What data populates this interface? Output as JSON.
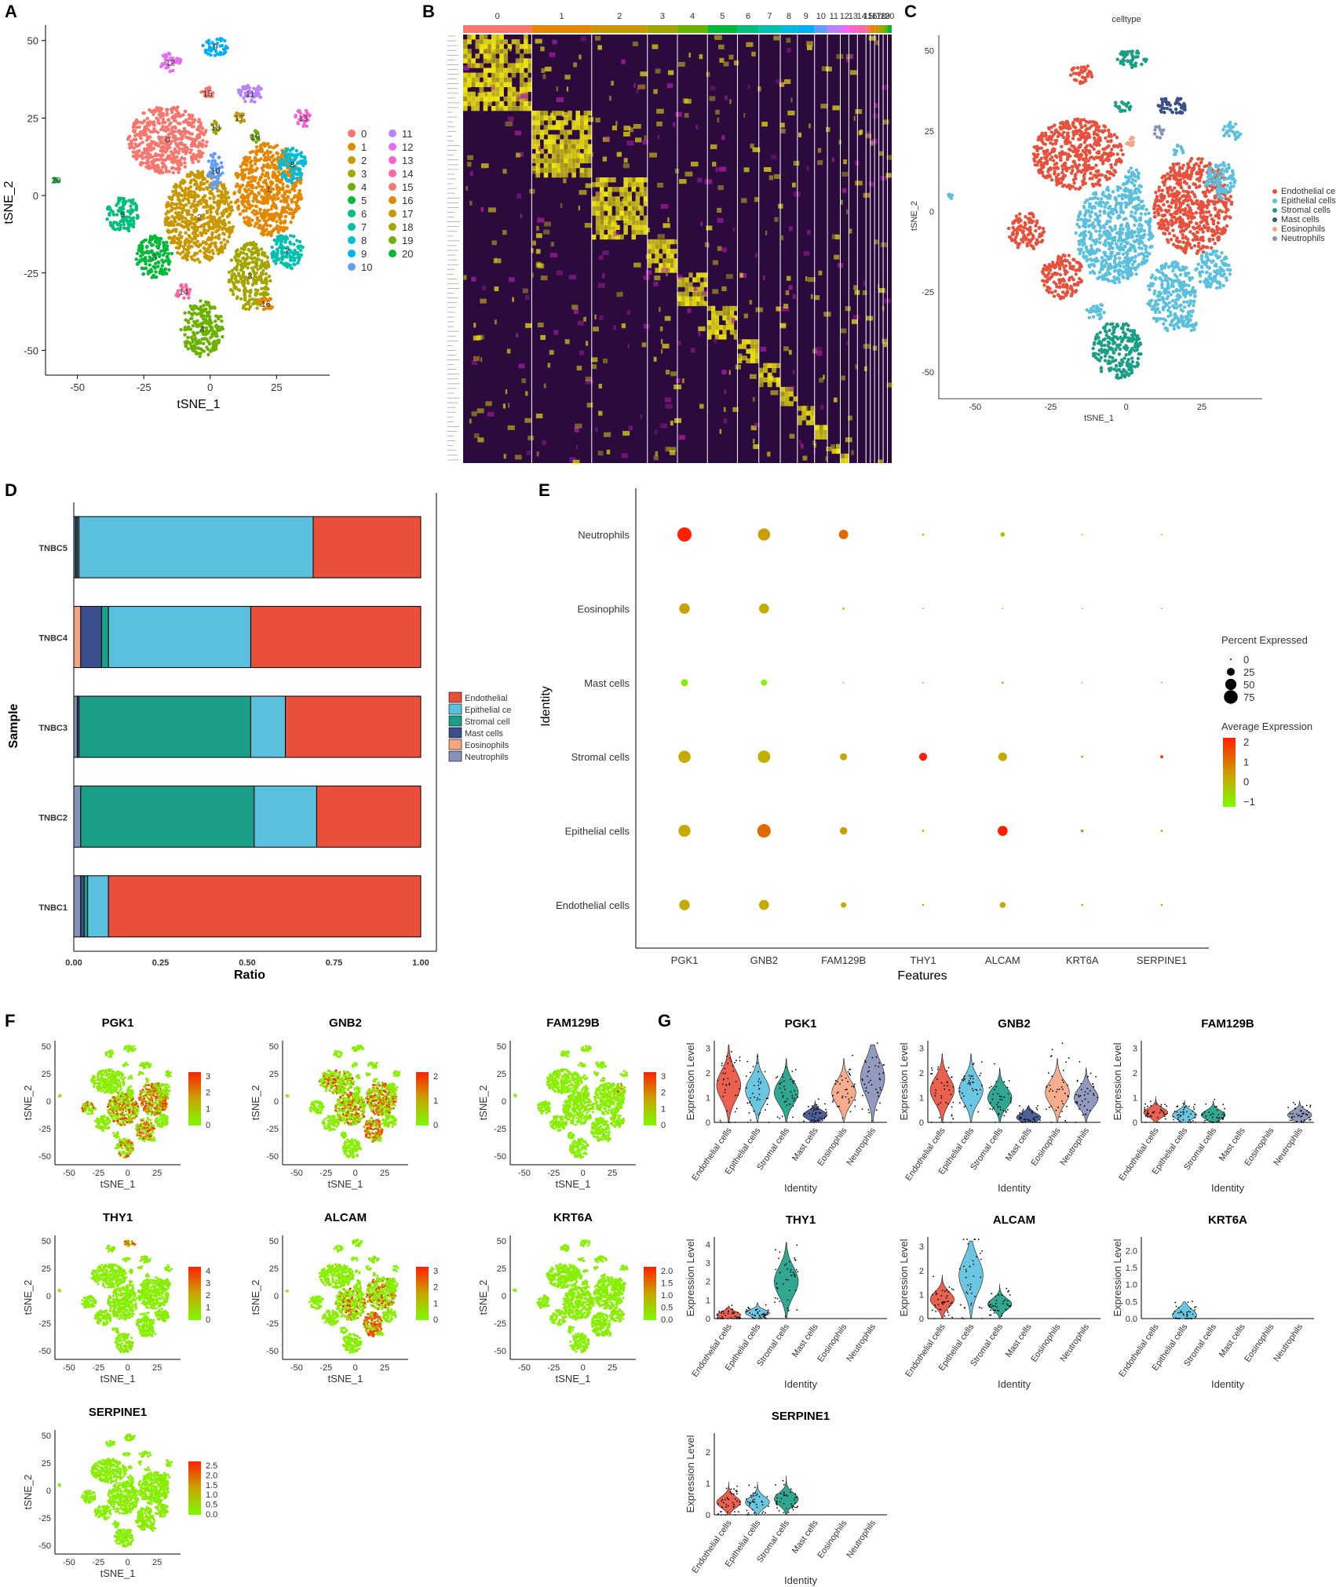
{
  "colors": {
    "clusters": [
      "#F8766D",
      "#E58700",
      "#C99800",
      "#A3A500",
      "#6BB100",
      "#00BA38",
      "#00BF7D",
      "#00C0AF",
      "#00BCD8",
      "#00B0F6",
      "#619CFF",
      "#B983FF",
      "#E76BF3",
      "#FD61D1",
      "#FF67A4",
      "#F8766D",
      "#E58700",
      "#C99800",
      "#A3A500",
      "#6BB100",
      "#00BA38"
    ],
    "celltype": {
      "Endothelial cells": "#E8503C",
      "Epithelial cells": "#5BC0DE",
      "Stromal cells": "#1A9E85",
      "Mast cells": "#3A4F8C",
      "Eosinophils": "#F4A582",
      "Neutrophils": "#8591B9"
    },
    "expr_low": "#7CFC00",
    "expr_mid": "#C9A500",
    "expr_high": "#FF2000"
  },
  "chart_data": [
    {
      "id": "A",
      "type": "scatter",
      "panel_label": "A",
      "xlabel": "tSNE_1",
      "ylabel": "tSNE_2",
      "xticks": [
        "-50",
        "-25",
        "0",
        "25"
      ],
      "yticks": [
        "50",
        "25",
        "0",
        "-25",
        "-50"
      ],
      "xlim": [
        -62,
        45
      ],
      "ylim": [
        -58,
        55
      ],
      "legend": [
        "0",
        "1",
        "2",
        "3",
        "4",
        "5",
        "6",
        "7",
        "8",
        "9",
        "10",
        "11",
        "12",
        "13",
        "14",
        "15",
        "16",
        "17",
        "18",
        "19",
        "20"
      ],
      "clusters": [
        {
          "label": "0",
          "x": -16,
          "y": 18,
          "rx": 15,
          "ry": 11
        },
        {
          "label": "1",
          "x": 22,
          "y": 2,
          "rx": 13,
          "ry": 15
        },
        {
          "label": "2",
          "x": -4,
          "y": -7,
          "rx": 13,
          "ry": 15
        },
        {
          "label": "3",
          "x": 15,
          "y": -26,
          "rx": 8,
          "ry": 11
        },
        {
          "label": "4",
          "x": -3,
          "y": -43,
          "rx": 8,
          "ry": 9
        },
        {
          "label": "5",
          "x": -21,
          "y": -20,
          "rx": 7,
          "ry": 7
        },
        {
          "label": "6",
          "x": -33,
          "y": -6,
          "rx": 6,
          "ry": 6
        },
        {
          "label": "7",
          "x": 29,
          "y": -18,
          "rx": 6,
          "ry": 6
        },
        {
          "label": "8",
          "x": 31,
          "y": 10,
          "rx": 5,
          "ry": 6
        },
        {
          "label": "9",
          "x": 2,
          "y": 48,
          "rx": 5,
          "ry": 3
        },
        {
          "label": "10",
          "x": 2,
          "y": 8,
          "rx": 3,
          "ry": 6
        },
        {
          "label": "11",
          "x": 15,
          "y": 33,
          "rx": 5,
          "ry": 3
        },
        {
          "label": "12",
          "x": -15,
          "y": 43,
          "rx": 4,
          "ry": 3
        },
        {
          "label": "13",
          "x": 35,
          "y": 25,
          "rx": 3,
          "ry": 3
        },
        {
          "label": "14",
          "x": -10,
          "y": -31,
          "rx": 3,
          "ry": 3
        },
        {
          "label": "15",
          "x": -1,
          "y": 33,
          "rx": 3,
          "ry": 2
        },
        {
          "label": "16",
          "x": 21,
          "y": -35,
          "rx": 3,
          "ry": 2
        },
        {
          "label": "17",
          "x": 11,
          "y": 25,
          "rx": 2,
          "ry": 2
        },
        {
          "label": "18",
          "x": 2,
          "y": 22,
          "rx": 2,
          "ry": 2
        },
        {
          "label": "19",
          "x": 17,
          "y": 19,
          "rx": 2,
          "ry": 2
        },
        {
          "label": "20",
          "x": -58,
          "y": 5,
          "rx": 1,
          "ry": 1
        }
      ]
    },
    {
      "id": "B",
      "type": "heatmap",
      "panel_label": "B",
      "cluster_labels": [
        "0",
        "1",
        "2",
        "3",
        "4",
        "5",
        "6",
        "7",
        "8",
        "9",
        "10",
        "11",
        "12",
        "13",
        "14",
        "15",
        "16",
        "17",
        "18",
        "19",
        "20"
      ],
      "cluster_widths": [
        16,
        14,
        13,
        7,
        7,
        7,
        5,
        5,
        4,
        4,
        3,
        3,
        2,
        2,
        2,
        1,
        1,
        1,
        1,
        1,
        1
      ],
      "colors": [
        "#2B0A3D",
        "#F0E614",
        "#B01FA6"
      ]
    },
    {
      "id": "C",
      "type": "scatter",
      "panel_label": "C",
      "title": "celltype",
      "xlabel": "tSNE_1",
      "ylabel": "tSNE_2",
      "xticks": [
        "-50",
        "-25",
        "0",
        "25"
      ],
      "yticks": [
        "50",
        "25",
        "0",
        "-25",
        "-50"
      ],
      "legend": [
        "Endothelial cells",
        "Epithelial cells",
        "Stromal cells",
        "Mast cells",
        "Eosinophils",
        "Neutrophils"
      ]
    },
    {
      "id": "D",
      "type": "bar",
      "panel_label": "D",
      "orientation": "horizontal",
      "stacked": true,
      "xlabel": "Ratio",
      "ylabel": "Sample",
      "xticks": [
        "0.00",
        "0.25",
        "0.50",
        "0.75",
        "1.00"
      ],
      "categories": [
        "TNBC5",
        "TNBC4",
        "TNBC3",
        "TNBC2",
        "TNBC1"
      ],
      "legend_labels": [
        "Endothelial",
        "Epithelial ce",
        "Stromal cell",
        "Mast cells",
        "Eosinophils",
        "Neutrophils"
      ],
      "series": [
        {
          "name": "Neutrophils",
          "values": [
            0.005,
            0.0,
            0.01,
            0.02,
            0.02
          ]
        },
        {
          "name": "Eosinophils",
          "values": [
            0.0,
            0.02,
            0.0,
            0.0,
            0.0
          ]
        },
        {
          "name": "Mast cells",
          "values": [
            0.005,
            0.06,
            0.005,
            0.0,
            0.01
          ]
        },
        {
          "name": "Stromal cells",
          "values": [
            0.005,
            0.02,
            0.495,
            0.5,
            0.01
          ]
        },
        {
          "name": "Epithelial cells",
          "values": [
            0.675,
            0.41,
            0.1,
            0.18,
            0.06
          ]
        },
        {
          "name": "Endothelial cells",
          "values": [
            0.31,
            0.49,
            0.39,
            0.3,
            0.9
          ]
        }
      ]
    },
    {
      "id": "E",
      "type": "scatter",
      "subtype": "dotplot",
      "panel_label": "E",
      "xlabel": "Features",
      "ylabel": "Identity",
      "features": [
        "PGK1",
        "GNB2",
        "FAM129B",
        "THY1",
        "ALCAM",
        "KRT6A",
        "SERPINE1"
      ],
      "identities": [
        "Neutrophils",
        "Eosinophils",
        "Mast cells",
        "Stromal cells",
        "Epithelial cells",
        "Endothelial cells"
      ],
      "percent": [
        [
          80,
          60,
          35,
          2,
          8,
          1,
          1
        ],
        [
          45,
          40,
          2,
          1,
          1,
          1,
          0
        ],
        [
          20,
          15,
          1,
          1,
          2,
          1,
          0
        ],
        [
          60,
          62,
          20,
          25,
          30,
          2,
          4
        ],
        [
          58,
          72,
          22,
          2,
          40,
          3,
          2
        ],
        [
          45,
          40,
          12,
          2,
          14,
          2,
          2
        ]
      ],
      "avg_expression": [
        [
          2.0,
          0.3,
          1.0,
          -0.5,
          -0.2,
          -0.5,
          -0.5
        ],
        [
          0.2,
          0.1,
          -0.5,
          -0.5,
          -0.5,
          -0.5,
          -0.5
        ],
        [
          -1.0,
          -1.2,
          -0.5,
          -0.5,
          -0.5,
          -0.5,
          -0.5
        ],
        [
          0.1,
          0.0,
          0.2,
          2.0,
          0.1,
          -0.3,
          1.5
        ],
        [
          0.1,
          1.0,
          0.3,
          -0.4,
          2.0,
          0.8,
          -0.3
        ],
        [
          0.1,
          0.1,
          0.1,
          -0.4,
          0.2,
          -0.4,
          -0.3
        ]
      ],
      "size_legend_title": "Percent Expressed",
      "size_legend": [
        "0",
        "25",
        "50",
        "75"
      ],
      "color_legend_title": "Average Expression",
      "color_legend": [
        "2",
        "1",
        "0",
        "−1"
      ]
    },
    {
      "id": "F",
      "type": "scatter",
      "subtype": "feature-plots",
      "panel_label": "F",
      "xlabel": "tSNE_1",
      "ylabel": "tSNE_2",
      "xticks": [
        "-50",
        "-25",
        "0",
        "25"
      ],
      "yticks": [
        "50",
        "25",
        "0",
        "-25",
        "-50"
      ],
      "genes": [
        {
          "name": "PGK1",
          "scale": [
            "3",
            "2",
            "1",
            "0"
          ]
        },
        {
          "name": "GNB2",
          "scale": [
            "2",
            "1",
            "0"
          ]
        },
        {
          "name": "FAM129B",
          "scale": [
            "3",
            "2",
            "1",
            "0"
          ]
        },
        {
          "name": "THY1",
          "scale": [
            "4",
            "3",
            "2",
            "1",
            "0"
          ]
        },
        {
          "name": "ALCAM",
          "scale": [
            "3",
            "2",
            "1",
            "0"
          ]
        },
        {
          "name": "KRT6A",
          "scale": [
            "2.0",
            "1.5",
            "1.0",
            "0.5",
            "0.0"
          ]
        },
        {
          "name": "SERPINE1",
          "scale": [
            "2.5",
            "2.0",
            "1.5",
            "1.0",
            "0.5",
            "0.0"
          ]
        }
      ]
    },
    {
      "id": "G",
      "type": "violin",
      "panel_label": "G",
      "xlabel": "Identity",
      "ylabel": "Expression Level",
      "categories": [
        "Endothelial cells",
        "Epithelial cells",
        "Stromal cells",
        "Mast cells",
        "Eosinophils",
        "Neutrophils"
      ],
      "genes": [
        {
          "name": "PGK1",
          "yticks": [
            "0",
            "1",
            "2",
            "3"
          ],
          "ymax": 3.3,
          "medians": [
            1.5,
            1.3,
            1.2,
            0.3,
            1.2,
            1.8
          ]
        },
        {
          "name": "GNB2",
          "yticks": [
            "0",
            "1",
            "2",
            "3"
          ],
          "ymax": 3.3,
          "medians": [
            1.3,
            1.3,
            1.0,
            0.2,
            1.2,
            1.0
          ]
        },
        {
          "name": "FAM129B",
          "yticks": [
            "0",
            "1",
            "2",
            "3"
          ],
          "ymax": 3.3,
          "medians": [
            0.4,
            0.3,
            0.3,
            0.0,
            0.0,
            0.3
          ]
        },
        {
          "name": "THY1",
          "yticks": [
            "0",
            "1",
            "2",
            "3",
            "4"
          ],
          "ymax": 4.4,
          "medians": [
            0.2,
            0.3,
            2.0,
            0.0,
            0.0,
            0.0
          ]
        },
        {
          "name": "ALCAM",
          "yticks": [
            "0",
            "1",
            "2",
            "3"
          ],
          "ymax": 3.4,
          "medians": [
            0.8,
            1.8,
            0.6,
            0.0,
            0.0,
            0.0
          ]
        },
        {
          "name": "KRT6A",
          "yticks": [
            "0.0",
            "0.5",
            "1.0",
            "1.5",
            "2.0"
          ],
          "ymax": 2.4,
          "medians": [
            0.0,
            0.1,
            0.0,
            0.0,
            0.0,
            0.0
          ]
        },
        {
          "name": "SERPINE1",
          "yticks": [
            "0",
            "1",
            "2"
          ],
          "ymax": 2.6,
          "medians": [
            0.4,
            0.4,
            0.5,
            0.0,
            0.0,
            0.0
          ]
        }
      ]
    }
  ]
}
